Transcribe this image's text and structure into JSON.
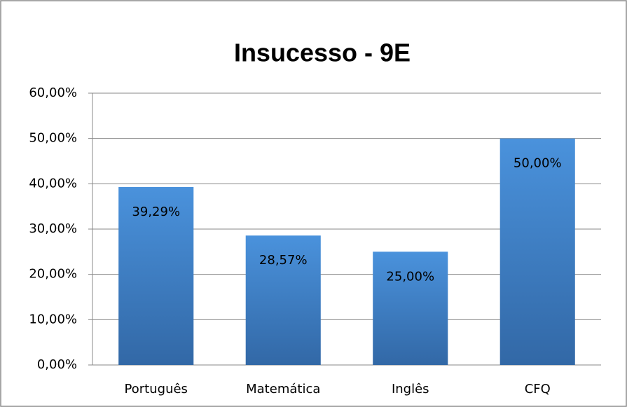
{
  "chart_data": {
    "type": "bar",
    "title": "Insucesso - 9E",
    "categories": [
      "Português",
      "Matemática",
      "Inglês",
      "CFQ"
    ],
    "values": [
      39.29,
      28.57,
      25.0,
      50.0
    ],
    "value_labels": [
      "39,29%",
      "28,57%",
      "25,00%",
      "50,00%"
    ],
    "color": "#4185cf",
    "ylim": [
      0,
      60
    ],
    "yticks": [
      {
        "value": 0,
        "label": "0,00%"
      },
      {
        "value": 10,
        "label": "10,00%"
      },
      {
        "value": 20,
        "label": "20,00%"
      },
      {
        "value": 30,
        "label": "30,00%"
      },
      {
        "value": 40,
        "label": "40,00%"
      },
      {
        "value": 50,
        "label": "50,00%"
      },
      {
        "value": 60,
        "label": "60,00%"
      }
    ],
    "grid": true
  }
}
